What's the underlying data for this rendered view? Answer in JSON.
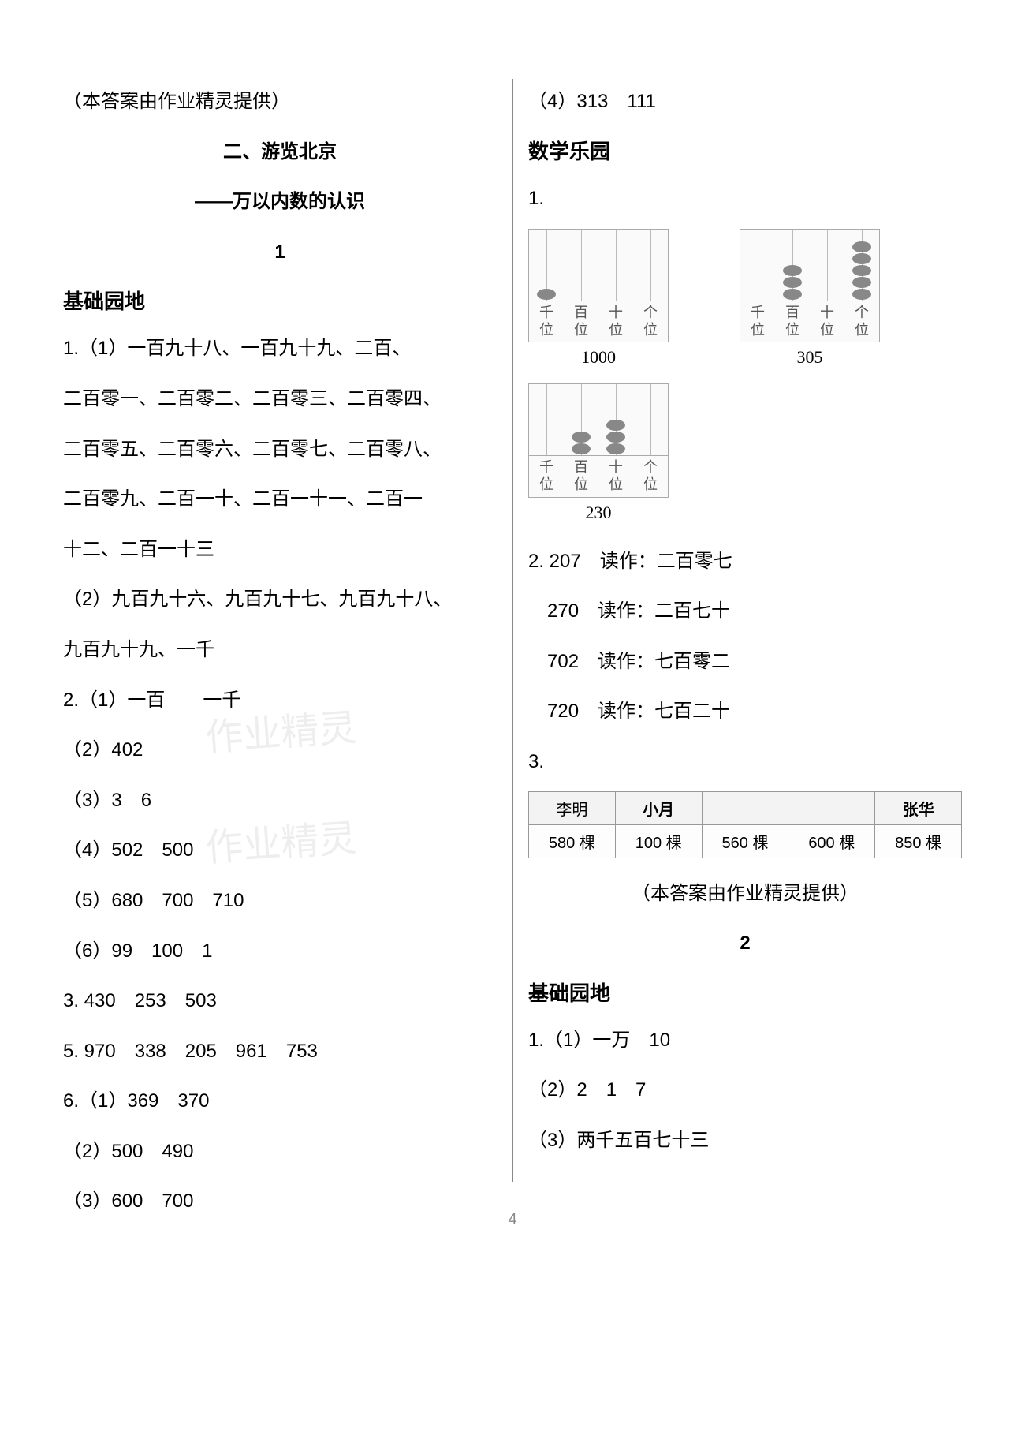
{
  "left": {
    "provided": "（本答案由作业精灵提供）",
    "chapter_title": "二、游览北京",
    "chapter_sub": "——万以内数的认识",
    "lesson_num": "1",
    "section_head": "基础园地",
    "q1_1a": "1.（1）一百九十八、一百九十九、二百、",
    "q1_1b": "二百零一、二百零二、二百零三、二百零四、",
    "q1_1c": "二百零五、二百零六、二百零七、二百零八、",
    "q1_1d": "二百零九、二百一十、二百一十一、二百一",
    "q1_1e": "十二、二百一十三",
    "q1_2a": "（2）九百九十六、九百九十七、九百九十八、",
    "q1_2b": "九百九十九、一千",
    "q2_1": "2.（1）一百　　一千",
    "q2_2": "（2）402",
    "q2_3": "（3）3　6",
    "q2_4": "（4）502　500",
    "q2_5": "（5）680　700　710",
    "q2_6": "（6）99　100　1",
    "q3": "3. 430　253　503",
    "q5": "5. 970　338　205　961　753",
    "q6_1": "6.（1）369　370",
    "q6_2": "（2）500　490",
    "q6_3": "（3）600　700"
  },
  "right": {
    "q6_4": "（4）313　111",
    "math_garden": "数学乐园",
    "q1_label": "1.",
    "abacus": {
      "col_labels": [
        "千位",
        "百位",
        "十位",
        "个位"
      ],
      "items": [
        {
          "beads": [
            1,
            0,
            0,
            0
          ],
          "caption": "1000"
        },
        {
          "beads": [
            0,
            3,
            0,
            5
          ],
          "caption": "305"
        },
        {
          "beads": [
            0,
            2,
            3,
            0
          ],
          "caption": "230"
        }
      ],
      "bead_color": "#888888"
    },
    "q2_lines": [
      "2. 207　读作：二百零七",
      "　270　读作：二百七十",
      "　702　读作：七百零二",
      "　720　读作：七百二十"
    ],
    "q3_label": "3.",
    "q3_table": {
      "header": [
        "李明",
        "小月",
        "",
        "",
        "张华"
      ],
      "row": [
        "580 棵",
        "100 棵",
        "560 棵",
        "600 棵",
        "850 棵"
      ]
    },
    "provided2": "（本答案由作业精灵提供）",
    "lesson2": "2",
    "section_head2": "基础园地",
    "l2_q1_1": "1.（1）一万　10",
    "l2_q1_2": "（2）2　1　7",
    "l2_q1_3": "（3）两千五百七十三"
  },
  "page_number": "4",
  "watermark_text": "作业精灵",
  "colors": {
    "text": "#000000",
    "muted": "#888888",
    "border": "#999999",
    "bg": "#ffffff"
  }
}
